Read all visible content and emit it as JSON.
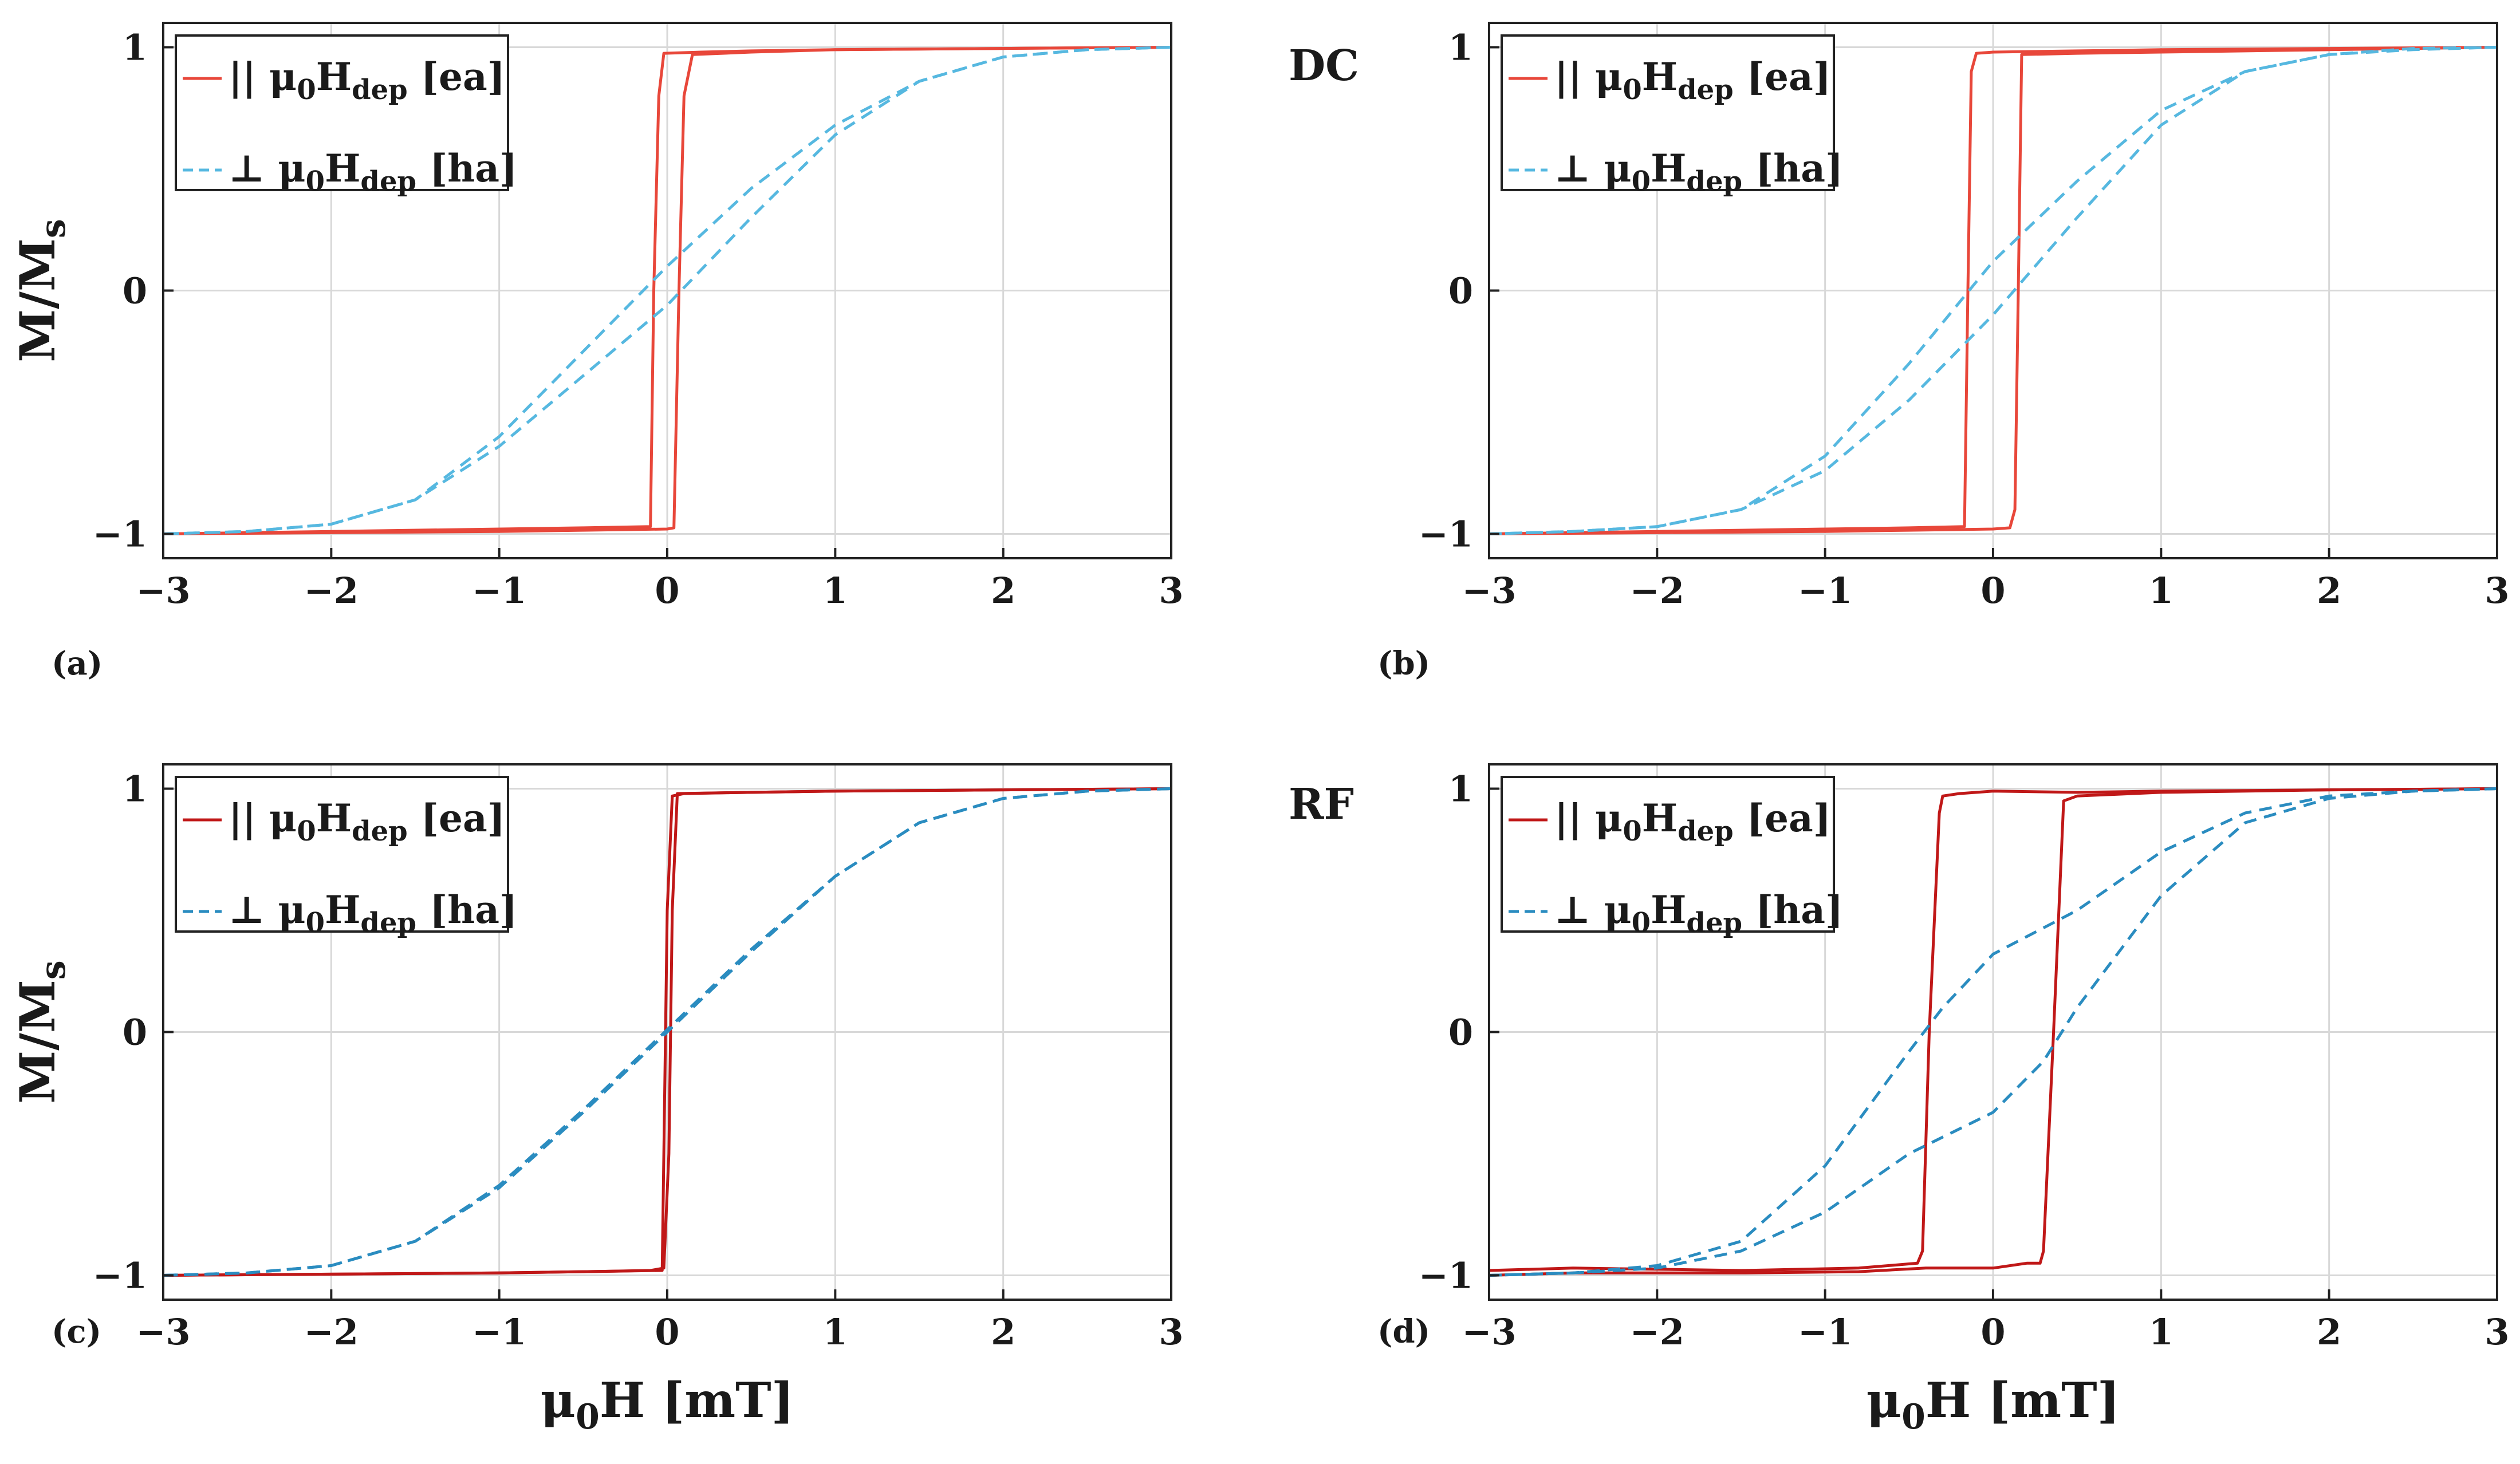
{
  "figure": {
    "colors": {
      "dc_ea": "#e8473a",
      "dc_ha": "#56b8e0",
      "rf_ea": "#c01818",
      "rf_ha": "#2a8cc0",
      "grid": "#d8d8d8",
      "axis": "#222222"
    },
    "xlabel": {
      "main": "μ",
      "sub": "0",
      "rest": "H [mT]"
    },
    "ylabel": {
      "main": "M/M",
      "sub": "s"
    }
  },
  "chart_data": [
    {
      "id": "a",
      "panel_tag": "(a)",
      "note": "",
      "type": "line",
      "xlim": [
        -3,
        3
      ],
      "ylim": [
        -1.1,
        1.1
      ],
      "xticks": [
        -3,
        -2,
        -1,
        0,
        1,
        2,
        3
      ],
      "yticks": [
        -1,
        0,
        1
      ],
      "xtick_labels": [
        "−3",
        "−2",
        "−1",
        "0",
        "1",
        "2",
        "3"
      ],
      "ytick_labels": [
        "−1",
        "0",
        "1"
      ],
      "grid": true,
      "legend_position": "top-left",
      "series": [
        {
          "name": "|| μ0Hdep [ea]",
          "legend": {
            "prefix": "|| μ",
            "sub1": "0",
            "mid": "H",
            "sub2": "dep",
            "suffix": " [ea]"
          },
          "color_key": "dc_ea",
          "style": "solid",
          "branches": [
            {
              "x": [
                3,
                2,
                1,
                0.5,
                0.2,
                -0.02,
                -0.05,
                -0.08,
                -0.1,
                -0.5,
                -1,
                -2,
                -3
              ],
              "y": [
                1,
                0.995,
                0.99,
                0.985,
                0.98,
                0.975,
                0.8,
                0,
                -0.97,
                -0.975,
                -0.98,
                -0.99,
                -1
              ]
            },
            {
              "x": [
                -3,
                -2,
                -1,
                -0.5,
                0,
                0.04,
                0.07,
                0.1,
                0.15,
                0.5,
                1,
                2,
                3
              ],
              "y": [
                -1,
                -0.995,
                -0.99,
                -0.985,
                -0.98,
                -0.975,
                0,
                0.8,
                0.97,
                0.98,
                0.99,
                0.995,
                1
              ]
            }
          ]
        },
        {
          "name": "⊥ μ0Hdep [ha]",
          "legend": {
            "prefix": "⊥ μ",
            "sub1": "0",
            "mid": "H",
            "sub2": "dep",
            "suffix": " [ha]"
          },
          "color_key": "dc_ha",
          "style": "dashed",
          "branches": [
            {
              "x": [
                3,
                2.5,
                2,
                1.5,
                1,
                0.5,
                0,
                -0.5,
                -1,
                -1.5,
                -2,
                -2.5,
                -3
              ],
              "y": [
                1,
                0.99,
                0.96,
                0.86,
                0.68,
                0.42,
                0.1,
                -0.25,
                -0.6,
                -0.86,
                -0.96,
                -0.99,
                -1
              ]
            },
            {
              "x": [
                -3,
                -2.5,
                -2,
                -1.5,
                -1,
                -0.5,
                0,
                0.5,
                1,
                1.5,
                2,
                2.5,
                3
              ],
              "y": [
                -1,
                -0.99,
                -0.96,
                -0.86,
                -0.64,
                -0.35,
                -0.06,
                0.3,
                0.64,
                0.86,
                0.96,
                0.99,
                1
              ]
            }
          ]
        }
      ]
    },
    {
      "id": "b",
      "panel_tag": "(b)",
      "note": "DC",
      "type": "line",
      "xlim": [
        -3,
        3
      ],
      "ylim": [
        -1.1,
        1.1
      ],
      "xticks": [
        -3,
        -2,
        -1,
        0,
        1,
        2,
        3
      ],
      "yticks": [
        -1,
        0,
        1
      ],
      "xtick_labels": [
        "−3",
        "−2",
        "−1",
        "0",
        "1",
        "2",
        "3"
      ],
      "ytick_labels": [
        "−1",
        "0",
        "1"
      ],
      "grid": true,
      "legend_position": "top-left",
      "series": [
        {
          "name": "|| μ0Hdep [ea]",
          "legend": {
            "prefix": "|| μ",
            "sub1": "0",
            "mid": "H",
            "sub2": "dep",
            "suffix": " [ea]"
          },
          "color_key": "dc_ea",
          "style": "solid",
          "branches": [
            {
              "x": [
                3,
                2,
                1,
                0.5,
                0,
                -0.1,
                -0.13,
                -0.15,
                -0.17,
                -0.5,
                -1,
                -2,
                -3
              ],
              "y": [
                1,
                0.995,
                0.99,
                0.985,
                0.98,
                0.975,
                0.9,
                0,
                -0.97,
                -0.975,
                -0.98,
                -0.99,
                -1
              ]
            },
            {
              "x": [
                -3,
                -2,
                -1,
                -0.5,
                0,
                0.1,
                0.13,
                0.15,
                0.17,
                0.5,
                1,
                2,
                3
              ],
              "y": [
                -1,
                -0.995,
                -0.99,
                -0.985,
                -0.98,
                -0.975,
                -0.9,
                0,
                0.97,
                0.975,
                0.98,
                0.99,
                1
              ]
            }
          ]
        },
        {
          "name": "⊥ μ0Hdep [ha]",
          "legend": {
            "prefix": "⊥ μ",
            "sub1": "0",
            "mid": "H",
            "sub2": "dep",
            "suffix": " [ha]"
          },
          "color_key": "dc_ha",
          "style": "dashed",
          "branches": [
            {
              "x": [
                3,
                2.5,
                2,
                1.5,
                1,
                0.5,
                0,
                -0.5,
                -1,
                -1.5,
                -2,
                -2.5,
                -3
              ],
              "y": [
                1,
                0.995,
                0.97,
                0.9,
                0.74,
                0.45,
                0.12,
                -0.3,
                -0.68,
                -0.9,
                -0.97,
                -0.99,
                -1
              ]
            },
            {
              "x": [
                -3,
                -2.5,
                -2,
                -1.5,
                -1,
                -0.5,
                0,
                0.5,
                1,
                1.5,
                2,
                2.5,
                3
              ],
              "y": [
                -1,
                -0.99,
                -0.97,
                -0.9,
                -0.74,
                -0.45,
                -0.1,
                0.3,
                0.68,
                0.9,
                0.97,
                0.99,
                1
              ]
            }
          ]
        }
      ]
    },
    {
      "id": "c",
      "panel_tag": "(c)",
      "note": "",
      "type": "line",
      "xlim": [
        -3,
        3
      ],
      "ylim": [
        -1.1,
        1.1
      ],
      "xticks": [
        -3,
        -2,
        -1,
        0,
        1,
        2,
        3
      ],
      "yticks": [
        -1,
        0,
        1
      ],
      "xtick_labels": [
        "−3",
        "−2",
        "−1",
        "0",
        "1",
        "2",
        "3"
      ],
      "ytick_labels": [
        "−1",
        "0",
        "1"
      ],
      "grid": true,
      "legend_position": "top-left",
      "series": [
        {
          "name": "|| μ0Hdep [ea]",
          "legend": {
            "prefix": "|| μ",
            "sub1": "0",
            "mid": "H",
            "sub2": "dep",
            "suffix": " [ea]"
          },
          "color_key": "rf_ea",
          "style": "solid",
          "branches": [
            {
              "x": [
                3,
                2,
                1,
                0.5,
                0.1,
                0.03,
                0,
                -0.02,
                -0.03,
                -0.5,
                -1,
                -2,
                -3
              ],
              "y": [
                1,
                0.995,
                0.99,
                0.985,
                0.98,
                0.97,
                0.5,
                -0.5,
                -0.98,
                -0.985,
                -0.99,
                -0.995,
                -1
              ]
            },
            {
              "x": [
                -3,
                -2,
                -1,
                -0.5,
                -0.1,
                -0.02,
                0.01,
                0.03,
                0.06,
                0.5,
                1,
                2,
                3
              ],
              "y": [
                -1,
                -0.995,
                -0.99,
                -0.985,
                -0.98,
                -0.97,
                -0.5,
                0.5,
                0.98,
                0.985,
                0.99,
                0.995,
                1
              ]
            }
          ]
        },
        {
          "name": "⊥ μ0Hdep [ha]",
          "legend": {
            "prefix": "⊥ μ",
            "sub1": "0",
            "mid": "H",
            "sub2": "dep",
            "suffix": " [ha]"
          },
          "color_key": "rf_ha",
          "style": "dashed",
          "branches": [
            {
              "x": [
                3,
                2.5,
                2,
                1.5,
                1,
                0.5,
                0,
                -0.5,
                -1,
                -1.5,
                -2,
                -2.5,
                -3
              ],
              "y": [
                1,
                0.99,
                0.96,
                0.86,
                0.64,
                0.33,
                0,
                -0.33,
                -0.64,
                -0.86,
                -0.96,
                -0.99,
                -1
              ]
            },
            {
              "x": [
                -3,
                -2.5,
                -2,
                -1.5,
                -1,
                -0.5,
                0,
                0.5,
                1,
                1.5,
                2,
                2.5,
                3
              ],
              "y": [
                -1,
                -0.99,
                -0.96,
                -0.86,
                -0.63,
                -0.32,
                0.01,
                0.34,
                0.64,
                0.86,
                0.96,
                0.99,
                1
              ]
            }
          ]
        }
      ]
    },
    {
      "id": "d",
      "panel_tag": "(d)",
      "note": "RF",
      "type": "line",
      "xlim": [
        -3,
        3
      ],
      "ylim": [
        -1.1,
        1.1
      ],
      "xticks": [
        -3,
        -2,
        -1,
        0,
        1,
        2,
        3
      ],
      "yticks": [
        -1,
        0,
        1
      ],
      "xtick_labels": [
        "−3",
        "−2",
        "−1",
        "0",
        "1",
        "2",
        "3"
      ],
      "ytick_labels": [
        "−1",
        "0",
        "1"
      ],
      "grid": true,
      "legend_position": "top-left",
      "series": [
        {
          "name": "|| μ0Hdep [ea]",
          "legend": {
            "prefix": "|| μ",
            "sub1": "0",
            "mid": "H",
            "sub2": "dep",
            "suffix": " [ea]"
          },
          "color_key": "rf_ea",
          "style": "solid",
          "branches": [
            {
              "x": [
                3,
                2,
                1,
                0.5,
                0,
                -0.2,
                -0.3,
                -0.32,
                -0.38,
                -0.42,
                -0.45,
                -0.8,
                -1.5,
                -2.5,
                -3
              ],
              "y": [
                1,
                0.995,
                0.99,
                0.985,
                0.99,
                0.98,
                0.97,
                0.9,
                0,
                -0.9,
                -0.95,
                -0.97,
                -0.98,
                -0.97,
                -0.98
              ]
            },
            {
              "x": [
                -3,
                -2.5,
                -1.5,
                -0.8,
                -0.4,
                0,
                0.2,
                0.28,
                0.3,
                0.36,
                0.42,
                0.5,
                1,
                2,
                3
              ],
              "y": [
                -1,
                -0.99,
                -0.99,
                -0.985,
                -0.97,
                -0.97,
                -0.95,
                -0.95,
                -0.9,
                0,
                0.95,
                0.97,
                0.985,
                0.995,
                1
              ]
            }
          ]
        },
        {
          "name": "⊥ μ0Hdep [ha]",
          "legend": {
            "prefix": "⊥ μ",
            "sub1": "0",
            "mid": "H",
            "sub2": "dep",
            "suffix": " [ha]"
          },
          "color_key": "rf_ha",
          "style": "dashed",
          "branches": [
            {
              "x": [
                3,
                2.5,
                2,
                1.5,
                1,
                0.5,
                0,
                -0.3,
                -0.5,
                -1,
                -1.5,
                -2,
                -2.5,
                -3
              ],
              "y": [
                1,
                0.99,
                0.97,
                0.9,
                0.74,
                0.5,
                0.32,
                0.1,
                -0.08,
                -0.55,
                -0.86,
                -0.96,
                -0.99,
                -1
              ]
            },
            {
              "x": [
                -3,
                -2.5,
                -2,
                -1.5,
                -1,
                -0.5,
                0,
                0.3,
                0.5,
                1,
                1.5,
                2,
                2.5,
                3
              ],
              "y": [
                -1,
                -0.99,
                -0.97,
                -0.9,
                -0.74,
                -0.5,
                -0.33,
                -0.12,
                0.1,
                0.56,
                0.86,
                0.96,
                0.99,
                1
              ]
            }
          ]
        }
      ]
    }
  ]
}
